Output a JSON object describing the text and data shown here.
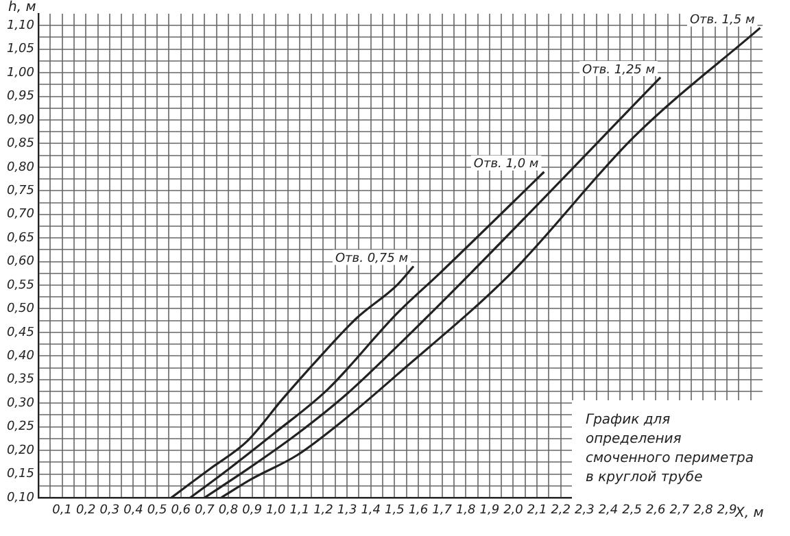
{
  "chart_data": {
    "type": "line",
    "xlabel": "X, м",
    "ylabel": "h, м",
    "annotations": [
      "График для определения смоченного периметра в круглой трубе"
    ],
    "xlim": [
      0,
      3.05
    ],
    "ylim": [
      0.1,
      1.125
    ],
    "xticks": [
      {
        "value": 0.05,
        "label": null
      },
      {
        "value": 0.1,
        "label": "0,1"
      },
      {
        "value": 0.15,
        "label": null
      },
      {
        "value": 0.2,
        "label": "0,2"
      },
      {
        "value": 0.25,
        "label": null
      },
      {
        "value": 0.3,
        "label": "0,3"
      },
      {
        "value": 0.35,
        "label": null
      },
      {
        "value": 0.4,
        "label": "0,4"
      },
      {
        "value": 0.45,
        "label": null
      },
      {
        "value": 0.5,
        "label": "0,5"
      },
      {
        "value": 0.55,
        "label": null
      },
      {
        "value": 0.6,
        "label": "0,6"
      },
      {
        "value": 0.65,
        "label": null
      },
      {
        "value": 0.7,
        "label": "0,7"
      },
      {
        "value": 0.75,
        "label": null
      },
      {
        "value": 0.8,
        "label": "0,8"
      },
      {
        "value": 0.85,
        "label": null
      },
      {
        "value": 0.9,
        "label": "0,9"
      },
      {
        "value": 0.95,
        "label": null
      },
      {
        "value": 1.0,
        "label": "1,0"
      },
      {
        "value": 1.05,
        "label": null
      },
      {
        "value": 1.1,
        "label": "1,1"
      },
      {
        "value": 1.15,
        "label": null
      },
      {
        "value": 1.2,
        "label": "1,2"
      },
      {
        "value": 1.25,
        "label": null
      },
      {
        "value": 1.3,
        "label": "1,3"
      },
      {
        "value": 1.35,
        "label": null
      },
      {
        "value": 1.4,
        "label": "1,4"
      },
      {
        "value": 1.45,
        "label": null
      },
      {
        "value": 1.5,
        "label": "1,5"
      },
      {
        "value": 1.55,
        "label": null
      },
      {
        "value": 1.6,
        "label": "1,6"
      },
      {
        "value": 1.65,
        "label": null
      },
      {
        "value": 1.7,
        "label": "1,7"
      },
      {
        "value": 1.75,
        "label": null
      },
      {
        "value": 1.8,
        "label": "1,8"
      },
      {
        "value": 1.85,
        "label": null
      },
      {
        "value": 1.9,
        "label": "1,9"
      },
      {
        "value": 1.95,
        "label": null
      },
      {
        "value": 2.0,
        "label": "2,0"
      },
      {
        "value": 2.05,
        "label": null
      },
      {
        "value": 2.1,
        "label": "2,1"
      },
      {
        "value": 2.15,
        "label": null
      },
      {
        "value": 2.2,
        "label": "2,2"
      },
      {
        "value": 2.25,
        "label": null
      },
      {
        "value": 2.3,
        "label": "2,3"
      },
      {
        "value": 2.35,
        "label": null
      },
      {
        "value": 2.4,
        "label": "2,4"
      },
      {
        "value": 2.45,
        "label": null
      },
      {
        "value": 2.5,
        "label": "2,5"
      },
      {
        "value": 2.55,
        "label": null
      },
      {
        "value": 2.6,
        "label": "2,6"
      },
      {
        "value": 2.65,
        "label": null
      },
      {
        "value": 2.7,
        "label": "2,7"
      },
      {
        "value": 2.75,
        "label": null
      },
      {
        "value": 2.8,
        "label": "2,8"
      },
      {
        "value": 2.85,
        "label": null
      },
      {
        "value": 2.9,
        "label": "2,9"
      },
      {
        "value": 2.95,
        "label": null
      },
      {
        "value": 3.0,
        "label": null
      }
    ],
    "yticks": [
      {
        "value": 0.1,
        "label": "0,10"
      },
      {
        "value": 0.125,
        "label": null
      },
      {
        "value": 0.15,
        "label": "0,15"
      },
      {
        "value": 0.175,
        "label": null
      },
      {
        "value": 0.2,
        "label": "0,20"
      },
      {
        "value": 0.225,
        "label": null
      },
      {
        "value": 0.25,
        "label": "0,25"
      },
      {
        "value": 0.275,
        "label": null
      },
      {
        "value": 0.3,
        "label": "0,30"
      },
      {
        "value": 0.325,
        "label": null
      },
      {
        "value": 0.35,
        "label": "0,35"
      },
      {
        "value": 0.375,
        "label": null
      },
      {
        "value": 0.4,
        "label": "0,40"
      },
      {
        "value": 0.425,
        "label": null
      },
      {
        "value": 0.45,
        "label": "0,45"
      },
      {
        "value": 0.475,
        "label": null
      },
      {
        "value": 0.5,
        "label": "0,50"
      },
      {
        "value": 0.525,
        "label": null
      },
      {
        "value": 0.55,
        "label": "0,55"
      },
      {
        "value": 0.575,
        "label": null
      },
      {
        "value": 0.6,
        "label": "0,60"
      },
      {
        "value": 0.625,
        "label": null
      },
      {
        "value": 0.65,
        "label": "0,65"
      },
      {
        "value": 0.675,
        "label": null
      },
      {
        "value": 0.7,
        "label": "0,70"
      },
      {
        "value": 0.725,
        "label": null
      },
      {
        "value": 0.75,
        "label": "0,75"
      },
      {
        "value": 0.775,
        "label": null
      },
      {
        "value": 0.8,
        "label": "0,80"
      },
      {
        "value": 0.825,
        "label": null
      },
      {
        "value": 0.85,
        "label": "0,85"
      },
      {
        "value": 0.875,
        "label": null
      },
      {
        "value": 0.9,
        "label": "0,90"
      },
      {
        "value": 0.925,
        "label": null
      },
      {
        "value": 0.95,
        "label": "0,95"
      },
      {
        "value": 0.975,
        "label": null
      },
      {
        "value": 1.0,
        "label": "1,00"
      },
      {
        "value": 1.025,
        "label": null
      },
      {
        "value": 1.05,
        "label": "1,05"
      },
      {
        "value": 1.075,
        "label": null
      },
      {
        "value": 1.1,
        "label": "1,10"
      }
    ],
    "grid": true,
    "legend": false,
    "marker": "none",
    "line_style": "solid",
    "series": [
      {
        "name": "Отв. 0,75 м",
        "color": "#222222",
        "x": [
          0.56,
          0.72,
          0.88,
          1.03,
          1.18,
          1.34,
          1.51,
          1.58
        ],
        "values": [
          0.1,
          0.16,
          0.22,
          0.31,
          0.395,
          0.48,
          0.55,
          0.59
        ]
      },
      {
        "name": "Отв. 1,0 м",
        "color": "#222222",
        "x": [
          0.64,
          0.8,
          0.99,
          1.22,
          1.51,
          1.69,
          2.13
        ],
        "values": [
          0.1,
          0.16,
          0.235,
          0.33,
          0.49,
          0.575,
          0.79
        ]
      },
      {
        "name": "Отв. 1,25 м",
        "color": "#222222",
        "x": [
          0.7,
          0.88,
          1.09,
          1.3,
          1.51,
          1.82,
          2.62
        ],
        "values": [
          0.1,
          0.16,
          0.235,
          0.32,
          0.42,
          0.575,
          0.99
        ]
      },
      {
        "name": "Отв. 1,5 м",
        "color": "#222222",
        "x": [
          0.77,
          0.9,
          1.09,
          1.3,
          1.51,
          1.99,
          2.51,
          3.04
        ],
        "values": [
          0.1,
          0.14,
          0.19,
          0.27,
          0.36,
          0.575,
          0.865,
          1.095
        ]
      }
    ]
  }
}
